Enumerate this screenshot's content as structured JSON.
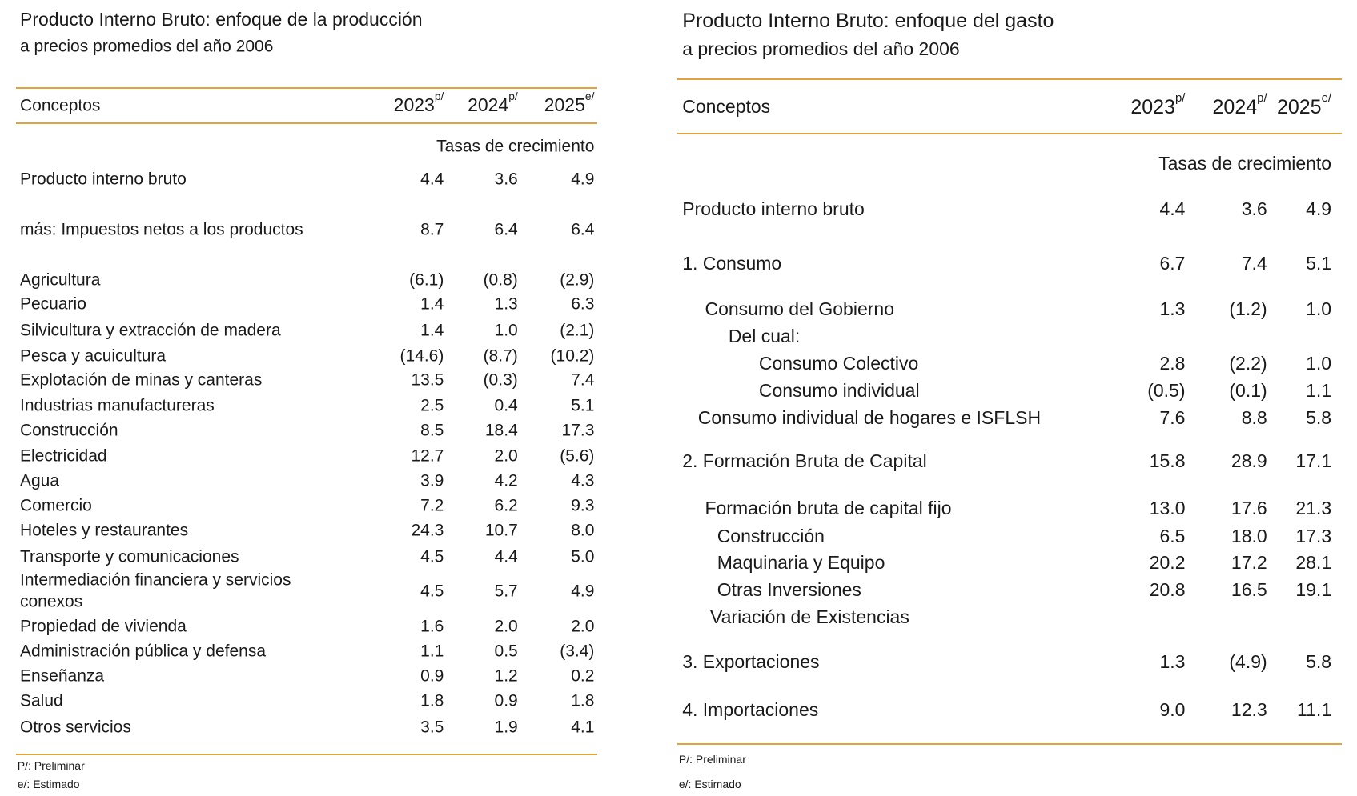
{
  "left": {
    "title": "Producto Interno Bruto: enfoque de la producción",
    "subtitle": "a precios promedios del año 2006",
    "header": {
      "concept": "Conceptos",
      "years": [
        {
          "year": "2023",
          "mark": "p/"
        },
        {
          "year": "2024",
          "mark": "p/"
        },
        {
          "year": "2025",
          "mark": "e/"
        }
      ]
    },
    "unit_label": "Tasas de crecimiento",
    "rows": [
      [
        "Producto interno bruto",
        "4.4",
        "3.6",
        "4.9"
      ],
      [
        "más: Impuestos netos a los productos",
        "8.7",
        "6.4",
        "6.4"
      ],
      [
        "Agricultura",
        "(6.1)",
        "(0.8)",
        "(2.9)"
      ],
      [
        "Pecuario",
        "1.4",
        "1.3",
        "6.3"
      ],
      [
        "Silvicultura y extracción de madera",
        "1.4",
        "1.0",
        "(2.1)"
      ],
      [
        "Pesca y acuicultura",
        "(14.6)",
        "(8.7)",
        "(10.2)"
      ],
      [
        "Explotación de minas y canteras",
        "13.5",
        "(0.3)",
        "7.4"
      ],
      [
        "Industrias manufactureras",
        "2.5",
        "0.4",
        "5.1"
      ],
      [
        "Construcción",
        "8.5",
        "18.4",
        "17.3"
      ],
      [
        "Electricidad",
        "12.7",
        "2.0",
        "(5.6)"
      ],
      [
        "Agua",
        "3.9",
        "4.2",
        "4.3"
      ],
      [
        "Comercio",
        "7.2",
        "6.2",
        "9.3"
      ],
      [
        "Hoteles y restaurantes",
        "24.3",
        "10.7",
        "8.0"
      ],
      [
        "Transporte y comunicaciones",
        "4.5",
        "4.4",
        "5.0"
      ],
      [
        "Intermediación financiera y servicios conexos",
        "4.5",
        "5.7",
        "4.9"
      ],
      [
        "Propiedad de vivienda",
        "1.6",
        "2.0",
        "2.0"
      ],
      [
        "Administración pública y defensa",
        "1.1",
        "0.5",
        "(3.4)"
      ],
      [
        "Enseñanza",
        "0.9",
        "1.2",
        "0.2"
      ],
      [
        "Salud",
        "1.8",
        "0.9",
        "1.8"
      ],
      [
        "Otros servicios",
        "3.5",
        "1.9",
        "4.1"
      ]
    ],
    "notes": [
      "P/: Preliminar",
      "e/: Estimado"
    ]
  },
  "right": {
    "title": "Producto Interno Bruto: enfoque del gasto",
    "subtitle": "a precios promedios del año 2006",
    "header": {
      "concept": "Conceptos",
      "years": [
        {
          "year": "2023",
          "mark": "p/"
        },
        {
          "year": "2024",
          "mark": "p/"
        },
        {
          "year": "2025",
          "mark": "e/"
        }
      ]
    },
    "unit_label": "Tasas de crecimiento",
    "rows": [
      [
        "Producto interno bruto",
        "4.4",
        "3.6",
        "4.9"
      ],
      [
        "1. Consumo",
        "6.7",
        "7.4",
        "5.1"
      ],
      [
        "Consumo del Gobierno",
        "1.3",
        "(1.2)",
        "1.0"
      ],
      [
        "Del cual:"
      ],
      [
        "Consumo Colectivo",
        "2.8",
        "(2.2)",
        "1.0"
      ],
      [
        "Consumo individual",
        "(0.5)",
        "(0.1)",
        "1.1"
      ],
      [
        "Consumo individual de hogares e ISFLSH",
        "7.6",
        "8.8",
        "5.8"
      ],
      [
        "2. Formación Bruta de Capital",
        "15.8",
        "28.9",
        "17.1"
      ],
      [
        "Formación bruta de capital fijo",
        "13.0",
        "17.6",
        "21.3"
      ],
      [
        "Construcción",
        "6.5",
        "18.0",
        "17.3"
      ],
      [
        "Maquinaria y Equipo",
        "20.2",
        "17.2",
        "28.1"
      ],
      [
        "Otras Inversiones",
        "20.8",
        "16.5",
        "19.1"
      ],
      [
        "Variación de Existencias"
      ],
      [
        "3. Exportaciones",
        "1.3",
        "(4.9)",
        "5.8"
      ],
      [
        "4. Importaciones",
        "9.0",
        "12.3",
        "11.1"
      ]
    ],
    "notes": [
      "P/: Preliminar",
      "e/: Estimado"
    ]
  }
}
